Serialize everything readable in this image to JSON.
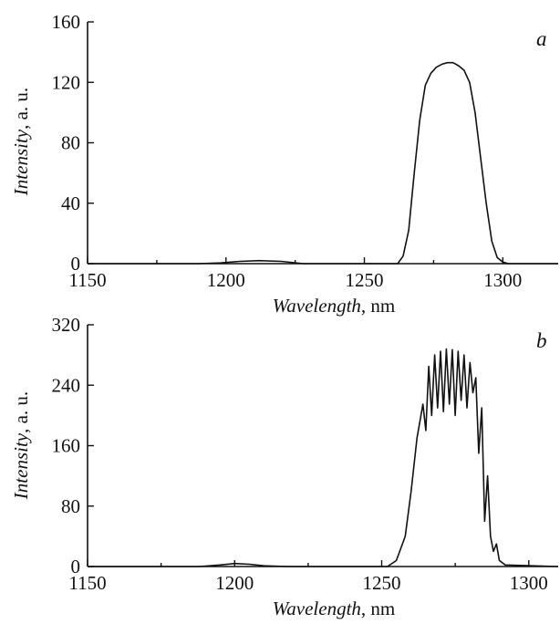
{
  "chart_data": [
    {
      "type": "line",
      "panel_label": "a",
      "xlabel_italic": "Wavelength",
      "xlabel_unit": ", nm",
      "ylabel_italic": "Intensity",
      "ylabel_unit": ", a. u.",
      "xlim": [
        1150,
        1320
      ],
      "ylim": [
        0,
        160
      ],
      "xticks": [
        "1150",
        "1200",
        "1250",
        "1300"
      ],
      "yticks": [
        "0",
        "40",
        "80",
        "120",
        "160"
      ],
      "series": [
        {
          "x": [
            1150,
            1190,
            1198,
            1205,
            1212,
            1220,
            1228,
            1262,
            1264,
            1266,
            1268,
            1270,
            1272,
            1274,
            1276,
            1278,
            1280,
            1282,
            1284,
            1286,
            1288,
            1290,
            1292,
            1294,
            1296,
            1298,
            1300,
            1302,
            1320
          ],
          "y": [
            0,
            0,
            0.5,
            1.5,
            2,
            1.5,
            0,
            0,
            5,
            22,
            60,
            95,
            118,
            126,
            130,
            132,
            133,
            133,
            131,
            128,
            120,
            100,
            70,
            40,
            15,
            4,
            1,
            0,
            0
          ]
        }
      ]
    },
    {
      "type": "line",
      "panel_label": "b",
      "xlabel_italic": "Wavelength",
      "xlabel_unit": ", nm",
      "ylabel_italic": "Intensity",
      "ylabel_unit": ", a. u.",
      "xlim": [
        1150,
        1310
      ],
      "ylim": [
        0,
        320
      ],
      "xticks": [
        "1150",
        "1200",
        "1250",
        "1300"
      ],
      "yticks": [
        "0",
        "80",
        "160",
        "240",
        "320"
      ],
      "series": [
        {
          "x": [
            1150,
            1188,
            1195,
            1200,
            1205,
            1210,
            1218,
            1252,
            1255,
            1258,
            1260,
            1262,
            1264,
            1265,
            1266,
            1267,
            1268,
            1269,
            1270,
            1271,
            1272,
            1273,
            1274,
            1275,
            1276,
            1277,
            1278,
            1279,
            1280,
            1281,
            1282,
            1283,
            1284,
            1285,
            1286,
            1287,
            1288,
            1289,
            1290,
            1292,
            1310
          ],
          "y": [
            0,
            0,
            2,
            4,
            3,
            1,
            0,
            0,
            8,
            40,
            100,
            170,
            215,
            180,
            265,
            200,
            280,
            210,
            285,
            205,
            288,
            215,
            287,
            200,
            285,
            220,
            280,
            210,
            270,
            230,
            250,
            150,
            210,
            60,
            120,
            40,
            20,
            30,
            8,
            2,
            0
          ]
        }
      ]
    }
  ]
}
